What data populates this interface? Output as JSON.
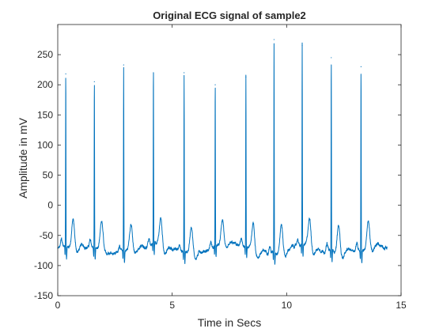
{
  "chart_data": {
    "type": "line",
    "title": "Original ECG signal of sample2",
    "xlabel": "Time in Secs",
    "ylabel": "Amplitude in mV",
    "xlim": [
      0,
      15
    ],
    "ylim": [
      -150,
      300
    ],
    "xticks": [
      0,
      5,
      10,
      15
    ],
    "yticks": [
      -150,
      -100,
      -50,
      0,
      50,
      100,
      150,
      200,
      250
    ],
    "grid": false,
    "line_color": "#0072BD",
    "series": [
      {
        "x_range": [
          0,
          14.4
        ],
        "baseline_mV": -72,
        "r_peaks": [
          {
            "t": 0.35,
            "v": 218
          },
          {
            "t": 1.6,
            "v": 205
          },
          {
            "t": 2.88,
            "v": 233
          },
          {
            "t": 4.18,
            "v": 220
          },
          {
            "t": 5.52,
            "v": 220
          },
          {
            "t": 6.88,
            "v": 200
          },
          {
            "t": 8.22,
            "v": 213
          },
          {
            "t": 9.45,
            "v": 275
          },
          {
            "t": 10.68,
            "v": 265
          },
          {
            "t": 11.95,
            "v": 245
          },
          {
            "t": 13.25,
            "v": 230
          }
        ]
      }
    ]
  }
}
